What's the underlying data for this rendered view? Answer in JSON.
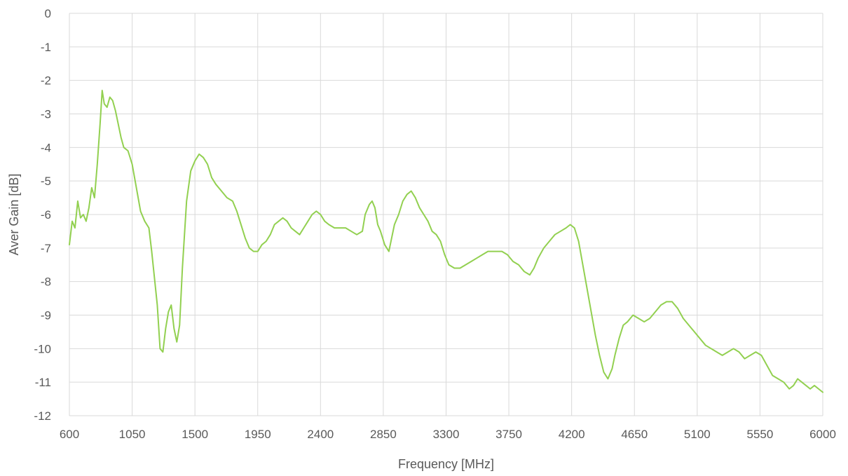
{
  "chart_data": {
    "type": "line",
    "title": "",
    "xlabel": "Frequency [MHz]",
    "ylabel": "Aver Gain [dB]",
    "xlim": [
      600,
      6000
    ],
    "ylim": [
      -12,
      0
    ],
    "x_ticks": [
      600,
      1050,
      1500,
      1950,
      2400,
      2850,
      3300,
      3750,
      4200,
      4650,
      5100,
      5550,
      6000
    ],
    "y_ticks": [
      0,
      -1,
      -2,
      -3,
      -4,
      -5,
      -6,
      -7,
      -8,
      -9,
      -10,
      -11,
      -12
    ],
    "grid": true,
    "legend": "none",
    "series": [
      {
        "color": "#92d050",
        "points": [
          [
            600,
            -6.9
          ],
          [
            620,
            -6.2
          ],
          [
            640,
            -6.4
          ],
          [
            660,
            -5.6
          ],
          [
            680,
            -6.1
          ],
          [
            700,
            -6.0
          ],
          [
            720,
            -6.2
          ],
          [
            740,
            -5.8
          ],
          [
            760,
            -5.2
          ],
          [
            780,
            -5.5
          ],
          [
            800,
            -4.5
          ],
          [
            820,
            -3.3
          ],
          [
            835,
            -2.3
          ],
          [
            850,
            -2.7
          ],
          [
            870,
            -2.8
          ],
          [
            890,
            -2.5
          ],
          [
            910,
            -2.6
          ],
          [
            930,
            -2.9
          ],
          [
            950,
            -3.3
          ],
          [
            970,
            -3.7
          ],
          [
            990,
            -4.0
          ],
          [
            1020,
            -4.1
          ],
          [
            1050,
            -4.5
          ],
          [
            1080,
            -5.2
          ],
          [
            1110,
            -5.9
          ],
          [
            1140,
            -6.2
          ],
          [
            1170,
            -6.4
          ],
          [
            1190,
            -7.1
          ],
          [
            1210,
            -7.9
          ],
          [
            1230,
            -8.7
          ],
          [
            1250,
            -10.0
          ],
          [
            1270,
            -10.1
          ],
          [
            1290,
            -9.4
          ],
          [
            1310,
            -8.9
          ],
          [
            1330,
            -8.7
          ],
          [
            1350,
            -9.4
          ],
          [
            1370,
            -9.8
          ],
          [
            1390,
            -9.3
          ],
          [
            1410,
            -7.6
          ],
          [
            1440,
            -5.6
          ],
          [
            1470,
            -4.7
          ],
          [
            1500,
            -4.4
          ],
          [
            1530,
            -4.2
          ],
          [
            1560,
            -4.3
          ],
          [
            1590,
            -4.5
          ],
          [
            1620,
            -4.9
          ],
          [
            1650,
            -5.1
          ],
          [
            1690,
            -5.3
          ],
          [
            1730,
            -5.5
          ],
          [
            1770,
            -5.6
          ],
          [
            1800,
            -5.9
          ],
          [
            1830,
            -6.3
          ],
          [
            1860,
            -6.7
          ],
          [
            1890,
            -7.0
          ],
          [
            1920,
            -7.1
          ],
          [
            1950,
            -7.1
          ],
          [
            1980,
            -6.9
          ],
          [
            2010,
            -6.8
          ],
          [
            2040,
            -6.6
          ],
          [
            2070,
            -6.3
          ],
          [
            2100,
            -6.2
          ],
          [
            2130,
            -6.1
          ],
          [
            2160,
            -6.2
          ],
          [
            2190,
            -6.4
          ],
          [
            2220,
            -6.5
          ],
          [
            2250,
            -6.6
          ],
          [
            2280,
            -6.4
          ],
          [
            2310,
            -6.2
          ],
          [
            2340,
            -6.0
          ],
          [
            2370,
            -5.9
          ],
          [
            2400,
            -6.0
          ],
          [
            2430,
            -6.2
          ],
          [
            2460,
            -6.3
          ],
          [
            2500,
            -6.4
          ],
          [
            2540,
            -6.4
          ],
          [
            2580,
            -6.4
          ],
          [
            2620,
            -6.5
          ],
          [
            2660,
            -6.6
          ],
          [
            2700,
            -6.5
          ],
          [
            2720,
            -6.0
          ],
          [
            2750,
            -5.7
          ],
          [
            2770,
            -5.6
          ],
          [
            2790,
            -5.8
          ],
          [
            2810,
            -6.3
          ],
          [
            2830,
            -6.5
          ],
          [
            2860,
            -6.9
          ],
          [
            2890,
            -7.1
          ],
          [
            2910,
            -6.7
          ],
          [
            2930,
            -6.3
          ],
          [
            2960,
            -6.0
          ],
          [
            2990,
            -5.6
          ],
          [
            3020,
            -5.4
          ],
          [
            3050,
            -5.3
          ],
          [
            3080,
            -5.5
          ],
          [
            3110,
            -5.8
          ],
          [
            3140,
            -6.0
          ],
          [
            3170,
            -6.2
          ],
          [
            3200,
            -6.5
          ],
          [
            3230,
            -6.6
          ],
          [
            3260,
            -6.8
          ],
          [
            3290,
            -7.2
          ],
          [
            3320,
            -7.5
          ],
          [
            3360,
            -7.6
          ],
          [
            3400,
            -7.6
          ],
          [
            3440,
            -7.5
          ],
          [
            3480,
            -7.4
          ],
          [
            3520,
            -7.3
          ],
          [
            3560,
            -7.2
          ],
          [
            3600,
            -7.1
          ],
          [
            3650,
            -7.1
          ],
          [
            3700,
            -7.1
          ],
          [
            3740,
            -7.2
          ],
          [
            3780,
            -7.4
          ],
          [
            3820,
            -7.5
          ],
          [
            3860,
            -7.7
          ],
          [
            3900,
            -7.8
          ],
          [
            3930,
            -7.6
          ],
          [
            3960,
            -7.3
          ],
          [
            4000,
            -7.0
          ],
          [
            4040,
            -6.8
          ],
          [
            4080,
            -6.6
          ],
          [
            4120,
            -6.5
          ],
          [
            4160,
            -6.4
          ],
          [
            4190,
            -6.3
          ],
          [
            4220,
            -6.4
          ],
          [
            4250,
            -6.8
          ],
          [
            4280,
            -7.5
          ],
          [
            4310,
            -8.2
          ],
          [
            4340,
            -8.9
          ],
          [
            4370,
            -9.6
          ],
          [
            4400,
            -10.2
          ],
          [
            4430,
            -10.7
          ],
          [
            4460,
            -10.9
          ],
          [
            4490,
            -10.6
          ],
          [
            4510,
            -10.2
          ],
          [
            4540,
            -9.7
          ],
          [
            4570,
            -9.3
          ],
          [
            4600,
            -9.2
          ],
          [
            4640,
            -9.0
          ],
          [
            4680,
            -9.1
          ],
          [
            4720,
            -9.2
          ],
          [
            4760,
            -9.1
          ],
          [
            4800,
            -8.9
          ],
          [
            4840,
            -8.7
          ],
          [
            4880,
            -8.6
          ],
          [
            4920,
            -8.6
          ],
          [
            4960,
            -8.8
          ],
          [
            5000,
            -9.1
          ],
          [
            5040,
            -9.3
          ],
          [
            5080,
            -9.5
          ],
          [
            5120,
            -9.7
          ],
          [
            5160,
            -9.9
          ],
          [
            5200,
            -10.0
          ],
          [
            5240,
            -10.1
          ],
          [
            5280,
            -10.2
          ],
          [
            5320,
            -10.1
          ],
          [
            5360,
            -10.0
          ],
          [
            5400,
            -10.1
          ],
          [
            5440,
            -10.3
          ],
          [
            5480,
            -10.2
          ],
          [
            5520,
            -10.1
          ],
          [
            5560,
            -10.2
          ],
          [
            5600,
            -10.5
          ],
          [
            5640,
            -10.8
          ],
          [
            5680,
            -10.9
          ],
          [
            5720,
            -11.0
          ],
          [
            5760,
            -11.2
          ],
          [
            5790,
            -11.1
          ],
          [
            5820,
            -10.9
          ],
          [
            5850,
            -11.0
          ],
          [
            5880,
            -11.1
          ],
          [
            5910,
            -11.2
          ],
          [
            5940,
            -11.1
          ],
          [
            5970,
            -11.2
          ],
          [
            6000,
            -11.3
          ]
        ]
      }
    ]
  }
}
